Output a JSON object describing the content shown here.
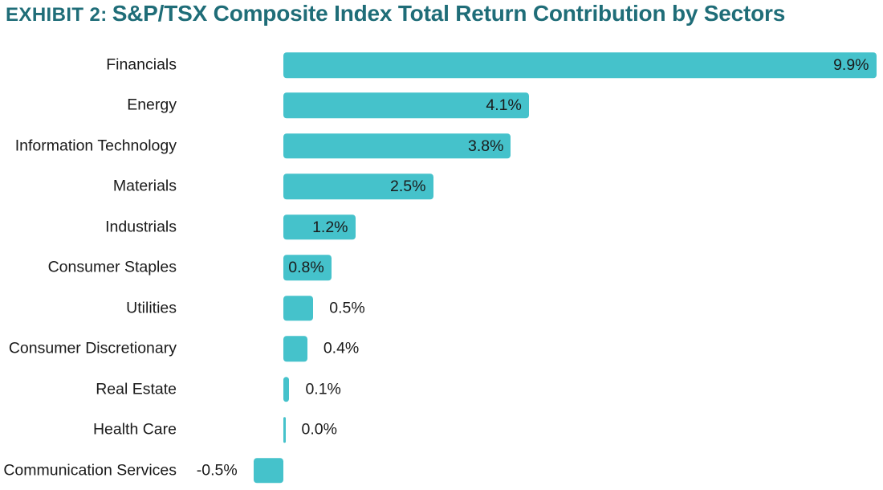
{
  "header": {
    "exhibit_label": "EXHIBIT 2:",
    "title": "S&P/TSX Composite Index Total Return Contribution by Sectors"
  },
  "colors": {
    "bar": "#45C2CB",
    "title": "#1F6D78",
    "text": "#1A1A1A",
    "background": "#FFFFFF"
  },
  "chart_data": {
    "type": "bar",
    "orientation": "horizontal",
    "title": "EXHIBIT 2: S&P/TSX Composite Index Total Return Contribution by Sectors",
    "xlabel": "",
    "ylabel": "",
    "grid": false,
    "legend": false,
    "axes_hidden": true,
    "xlim": [
      -0.5,
      9.9
    ],
    "value_unit": "%",
    "categories": [
      "Financials",
      "Energy",
      "Information Technology",
      "Materials",
      "Industrials",
      "Consumer Staples",
      "Utilities",
      "Consumer Discretionary",
      "Real Estate",
      "Health Care",
      "Communication Services"
    ],
    "values": [
      9.9,
      4.1,
      3.8,
      2.5,
      1.2,
      0.8,
      0.5,
      0.4,
      0.1,
      0.0,
      -0.5
    ],
    "value_labels": [
      "9.9%",
      "4.1%",
      "3.8%",
      "2.5%",
      "1.2%",
      "0.8%",
      "0.5%",
      "0.4%",
      "0.1%",
      "0.0%",
      "-0.5%"
    ],
    "value_label_positions": [
      "inside",
      "inside",
      "inside",
      "inside",
      "inside",
      "inside",
      "outside-right",
      "outside-right",
      "outside-right",
      "outside-right",
      "outside-left"
    ]
  }
}
